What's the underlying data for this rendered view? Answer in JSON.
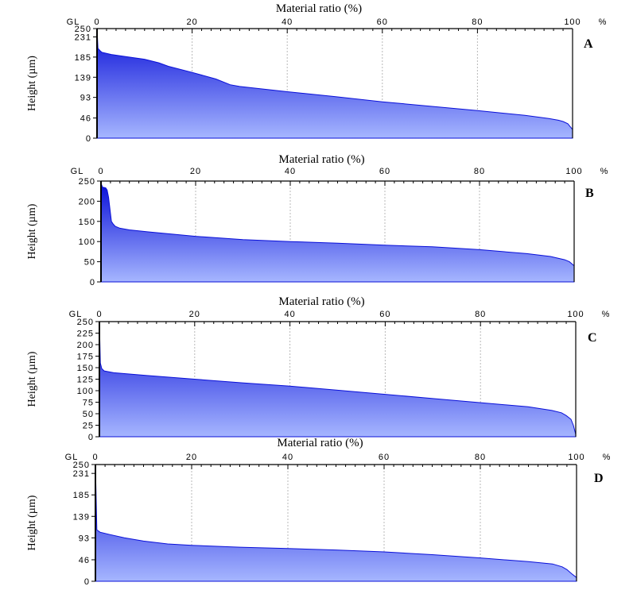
{
  "colors": {
    "fill_top": "#0a10d8",
    "fill_bottom": "#a6b6ff",
    "grid": "#b8b8b8",
    "axis": "#000000"
  },
  "chart_data": [
    {
      "type": "area",
      "panel_label": "A",
      "title": "Material ratio (%)",
      "xlabel": "Material ratio (%)",
      "ylabel": "Height (µm)",
      "x_prefix": "GL",
      "x_unit": "%",
      "x_ticks": [
        0,
        20,
        40,
        60,
        80,
        100
      ],
      "xlim": [
        0,
        100
      ],
      "y_ticks": [
        0,
        46,
        93,
        139,
        185,
        231,
        250
      ],
      "ylim": [
        0,
        250
      ],
      "x": [
        0,
        0.2,
        0.6,
        1,
        3,
        6,
        10,
        13,
        15,
        20,
        25,
        28,
        30,
        40,
        50,
        60,
        70,
        80,
        90,
        95,
        97,
        98,
        99,
        99.6,
        100
      ],
      "y": [
        250,
        205,
        200,
        196,
        191,
        186,
        180,
        172,
        164,
        150,
        135,
        122,
        118,
        106,
        95,
        83,
        73,
        63,
        52,
        45,
        41,
        38,
        33,
        25,
        20
      ]
    },
    {
      "type": "area",
      "panel_label": "B",
      "title": "Material ratio (%)",
      "xlabel": "Material ratio (%)",
      "ylabel": "Height (µm)",
      "x_prefix": "GL",
      "x_unit": "%",
      "x_ticks": [
        0,
        20,
        40,
        60,
        80,
        100
      ],
      "xlim": [
        0,
        100
      ],
      "y_ticks": [
        0,
        50,
        100,
        150,
        200,
        250
      ],
      "ylim": [
        0,
        250
      ],
      "x": [
        0,
        0.3,
        1,
        1.3,
        1.6,
        1.9,
        2.2,
        2.6,
        3,
        4,
        6,
        10,
        20,
        30,
        40,
        50,
        60,
        70,
        80,
        90,
        95,
        98,
        99,
        100
      ],
      "y": [
        245,
        235,
        233,
        228,
        210,
        180,
        150,
        143,
        138,
        133,
        129,
        124,
        113,
        105,
        100,
        96,
        91,
        87,
        80,
        70,
        63,
        55,
        50,
        40
      ]
    },
    {
      "type": "area",
      "panel_label": "C",
      "title": "Material ratio (%)",
      "xlabel": "Material ratio (%)",
      "ylabel": "Height (µm)",
      "x_prefix": "GL",
      "x_unit": "%",
      "x_ticks": [
        0,
        20,
        40,
        60,
        80,
        100
      ],
      "xlim": [
        0,
        100
      ],
      "y_ticks": [
        0,
        25,
        50,
        75,
        100,
        125,
        150,
        175,
        200,
        225,
        250
      ],
      "ylim": [
        0,
        250
      ],
      "x": [
        0,
        0.2,
        0.5,
        1,
        3,
        10,
        20,
        30,
        40,
        50,
        60,
        70,
        80,
        90,
        95,
        97,
        98,
        99,
        99.5,
        100
      ],
      "y": [
        250,
        160,
        148,
        143,
        139,
        133,
        125,
        117,
        110,
        101,
        92,
        83,
        74,
        65,
        57,
        52,
        46,
        38,
        25,
        5
      ]
    },
    {
      "type": "area",
      "panel_label": "D",
      "title": "Material ratio (%)",
      "xlabel": "Material ratio (%)",
      "ylabel": "Height (µm)",
      "x_prefix": "GL",
      "x_unit": "%",
      "x_ticks": [
        0,
        20,
        40,
        60,
        80,
        100
      ],
      "xlim": [
        0,
        100
      ],
      "y_ticks": [
        0,
        46,
        93,
        139,
        185,
        231,
        250
      ],
      "ylim": [
        0,
        250
      ],
      "x": [
        0,
        0.3,
        1,
        3,
        6,
        10,
        15,
        20,
        30,
        40,
        50,
        60,
        70,
        80,
        90,
        95,
        97,
        98,
        99,
        100
      ],
      "y": [
        250,
        110,
        105,
        100,
        93,
        86,
        80,
        77,
        73,
        70,
        67,
        63,
        57,
        50,
        42,
        37,
        31,
        25,
        16,
        8
      ]
    }
  ]
}
